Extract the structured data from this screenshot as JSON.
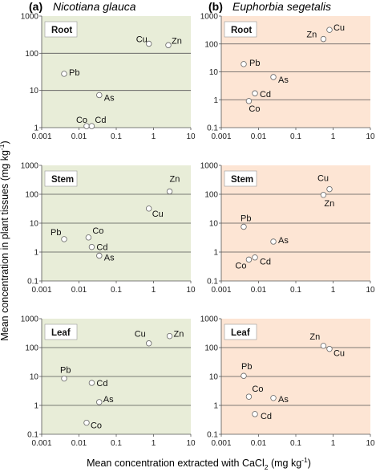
{
  "figure": {
    "ylabel": "Mean concentration  in plant tissues (mg kg",
    "ylabel_sup": "-1",
    "ylabel_end": ")",
    "xlabel": "Mean concentration extracted with CaCl",
    "xlabel_sub": "2",
    "xlabel_unit": " (mg kg",
    "xlabel_sup": "-1",
    "xlabel_end": ")"
  },
  "columns": [
    {
      "letter": "(a)",
      "species": "Nicotiana glauca",
      "bg": "#e8edd8"
    },
    {
      "letter": "(b)",
      "species": "Euphorbia segetalis",
      "bg": "#fde5d4"
    }
  ],
  "axes": {
    "x_ticks": [
      "0.001",
      "0.01",
      "0.1",
      "1",
      "10"
    ],
    "y_ticks": [
      "1000",
      "100",
      "10",
      "1",
      "0.1"
    ],
    "x_scale": "log",
    "y_scale": "log",
    "root_y_ticks": [
      "1000",
      "100",
      "10",
      "1"
    ]
  },
  "chart_data": [
    {
      "type": "scatter",
      "column": 0,
      "row": 0,
      "label": "Root",
      "xlim": [
        0.001,
        10
      ],
      "ylim": [
        1,
        1000
      ],
      "points": [
        {
          "element": "Cu",
          "x": 0.75,
          "y": 180
        },
        {
          "element": "Zn",
          "x": 2.5,
          "y": 165
        },
        {
          "element": "Pb",
          "x": 0.004,
          "y": 28
        },
        {
          "element": "As",
          "x": 0.035,
          "y": 7.5
        },
        {
          "element": "Co",
          "x": 0.016,
          "y": 1.1
        },
        {
          "element": "Cd",
          "x": 0.022,
          "y": 1.1
        }
      ]
    },
    {
      "type": "scatter",
      "column": 1,
      "row": 0,
      "label": "Root",
      "xlim": [
        0.001,
        10
      ],
      "ylim": [
        0.1,
        1000
      ],
      "points": [
        {
          "element": "Zn",
          "x": 0.55,
          "y": 150
        },
        {
          "element": "Cu",
          "x": 0.8,
          "y": 320
        },
        {
          "element": "Pb",
          "x": 0.004,
          "y": 19
        },
        {
          "element": "As",
          "x": 0.025,
          "y": 6.5
        },
        {
          "element": "Cd",
          "x": 0.008,
          "y": 1.7
        },
        {
          "element": "Co",
          "x": 0.0055,
          "y": 0.9
        }
      ]
    },
    {
      "type": "scatter",
      "column": 0,
      "row": 1,
      "label": "Stem",
      "xlim": [
        0.001,
        10
      ],
      "ylim": [
        0.1,
        1000
      ],
      "points": [
        {
          "element": "Zn",
          "x": 2.7,
          "y": 125
        },
        {
          "element": "Cu",
          "x": 0.75,
          "y": 32
        },
        {
          "element": "Pb",
          "x": 0.004,
          "y": 2.8
        },
        {
          "element": "Co",
          "x": 0.018,
          "y": 3.2
        },
        {
          "element": "Cd",
          "x": 0.022,
          "y": 1.5
        },
        {
          "element": "As",
          "x": 0.035,
          "y": 0.75
        }
      ]
    },
    {
      "type": "scatter",
      "column": 1,
      "row": 1,
      "label": "Stem",
      "xlim": [
        0.001,
        10
      ],
      "ylim": [
        0.1,
        1000
      ],
      "points": [
        {
          "element": "Cu",
          "x": 0.8,
          "y": 150
        },
        {
          "element": "Zn",
          "x": 0.55,
          "y": 95
        },
        {
          "element": "Pb",
          "x": 0.004,
          "y": 7.5
        },
        {
          "element": "As",
          "x": 0.025,
          "y": 2.3
        },
        {
          "element": "Co",
          "x": 0.0055,
          "y": 0.55
        },
        {
          "element": "Cd",
          "x": 0.008,
          "y": 0.65
        }
      ]
    },
    {
      "type": "scatter",
      "column": 0,
      "row": 2,
      "label": "Leaf",
      "xlim": [
        0.001,
        10
      ],
      "ylim": [
        0.1,
        1000
      ],
      "points": [
        {
          "element": "Cu",
          "x": 0.75,
          "y": 140
        },
        {
          "element": "Zn",
          "x": 2.7,
          "y": 250
        },
        {
          "element": "Pb",
          "x": 0.004,
          "y": 8.5
        },
        {
          "element": "Cd",
          "x": 0.022,
          "y": 6
        },
        {
          "element": "As",
          "x": 0.035,
          "y": 1.3
        },
        {
          "element": "Co",
          "x": 0.016,
          "y": 0.25
        }
      ]
    },
    {
      "type": "scatter",
      "column": 1,
      "row": 2,
      "label": "Leaf",
      "xlim": [
        0.001,
        10
      ],
      "ylim": [
        0.1,
        1000
      ],
      "points": [
        {
          "element": "Zn",
          "x": 0.55,
          "y": 115
        },
        {
          "element": "Cu",
          "x": 0.8,
          "y": 90
        },
        {
          "element": "Pb",
          "x": 0.004,
          "y": 10.5
        },
        {
          "element": "Co",
          "x": 0.0055,
          "y": 2
        },
        {
          "element": "As",
          "x": 0.025,
          "y": 1.8
        },
        {
          "element": "Cd",
          "x": 0.008,
          "y": 0.5
        }
      ]
    }
  ]
}
